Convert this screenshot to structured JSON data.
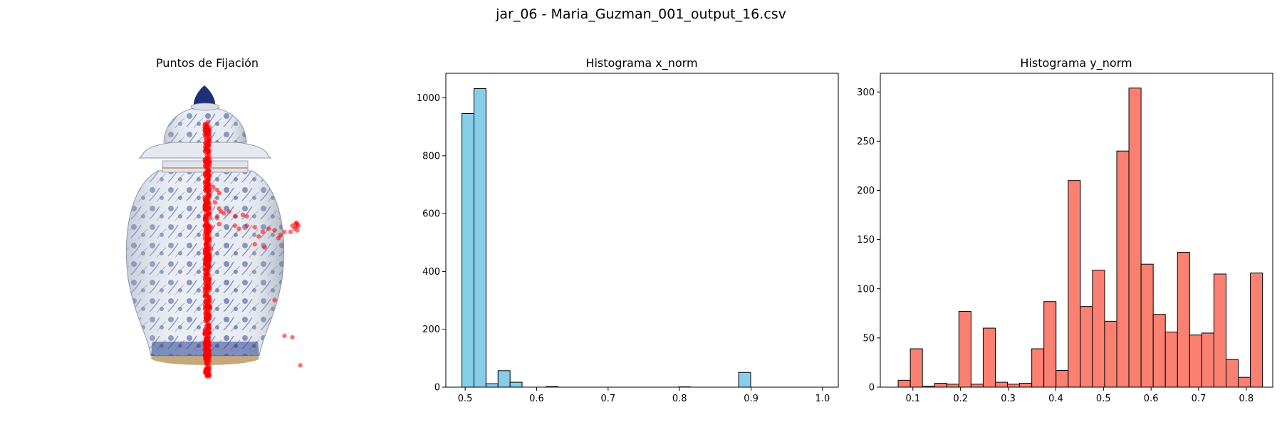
{
  "figure": {
    "suptitle": "jar_06 - Maria_Guzman_001_output_16.csv"
  },
  "chart_data": [
    {
      "type": "scatter",
      "title": "Puntos de Fijación",
      "background_image": "blue-white-porcelain-ginger-jar",
      "axes_visible": false,
      "point_color": "#ff0000",
      "point_alpha": 0.55,
      "xlim": [
        0,
        1
      ],
      "ylim": [
        0,
        1
      ],
      "trail": {
        "x_center": 0.5,
        "x_jitter": 0.013,
        "y_range": [
          0.04,
          0.86
        ],
        "count": 520
      },
      "points": [
        [
          0.505,
          0.86
        ],
        [
          0.51,
          0.8
        ],
        [
          0.495,
          0.74
        ],
        [
          0.505,
          0.7
        ],
        [
          0.51,
          0.64
        ],
        [
          0.5,
          0.6
        ],
        [
          0.515,
          0.55
        ],
        [
          0.52,
          0.52
        ],
        [
          0.51,
          0.48
        ],
        [
          0.52,
          0.45
        ],
        [
          0.5,
          0.42
        ],
        [
          0.505,
          0.38
        ],
        [
          0.51,
          0.34
        ],
        [
          0.5,
          0.3
        ],
        [
          0.515,
          0.26
        ],
        [
          0.5,
          0.22
        ],
        [
          0.51,
          0.18
        ],
        [
          0.505,
          0.14
        ],
        [
          0.51,
          0.1
        ],
        [
          0.505,
          0.06
        ],
        [
          0.51,
          0.04
        ],
        [
          0.53,
          0.65
        ],
        [
          0.55,
          0.64
        ],
        [
          0.56,
          0.63
        ],
        [
          0.54,
          0.6
        ],
        [
          0.56,
          0.58
        ],
        [
          0.57,
          0.57
        ],
        [
          0.55,
          0.55
        ],
        [
          0.56,
          0.53
        ],
        [
          0.585,
          0.565
        ],
        [
          0.61,
          0.57
        ],
        [
          0.64,
          0.555
        ],
        [
          0.68,
          0.56
        ],
        [
          0.7,
          0.555
        ],
        [
          0.64,
          0.525
        ],
        [
          0.7,
          0.525
        ],
        [
          0.66,
          0.515
        ],
        [
          0.74,
          0.52
        ],
        [
          0.78,
          0.505
        ],
        [
          0.81,
          0.515
        ],
        [
          0.76,
          0.49
        ],
        [
          0.84,
          0.51
        ],
        [
          0.87,
          0.495
        ],
        [
          0.89,
          0.505
        ],
        [
          0.92,
          0.505
        ],
        [
          0.86,
          0.485
        ],
        [
          0.74,
          0.465
        ],
        [
          0.79,
          0.455
        ],
        [
          0.93,
          0.525
        ],
        [
          0.945,
          0.53
        ],
        [
          0.955,
          0.53
        ],
        [
          0.95,
          0.52
        ],
        [
          0.96,
          0.525
        ],
        [
          0.94,
          0.515
        ],
        [
          0.955,
          0.51
        ],
        [
          0.95,
          0.535
        ],
        [
          0.84,
          0.285
        ],
        [
          0.89,
          0.17
        ],
        [
          0.93,
          0.165
        ],
        [
          0.97,
          0.075
        ]
      ]
    },
    {
      "type": "bar",
      "title": "Histograma x_norm",
      "xlabel": "",
      "ylabel": "",
      "color": "#87ceeb",
      "edgecolor": "#000000",
      "xlim": [
        0.473,
        1.022
      ],
      "ylim": [
        0,
        1085
      ],
      "xticks": [
        "0.5",
        "0.6",
        "0.7",
        "0.8",
        "0.9",
        "1.0"
      ],
      "xtick_values": [
        0.5,
        0.6,
        0.7,
        0.8,
        0.9,
        1.0
      ],
      "yticks": [
        "0",
        "200",
        "400",
        "600",
        "800",
        "1000"
      ],
      "ytick_values": [
        0,
        200,
        400,
        600,
        800,
        1000
      ],
      "bin_start": 0.4955,
      "bin_width": 0.01683,
      "values": [
        946,
        1032,
        12,
        57,
        17,
        0,
        0,
        2,
        0,
        0,
        0,
        0,
        0,
        0,
        0,
        0,
        0,
        0,
        1,
        0,
        0,
        0,
        0,
        51,
        0,
        0,
        0,
        0,
        0,
        0
      ]
    },
    {
      "type": "bar",
      "title": "Histograma y_norm",
      "xlabel": "",
      "ylabel": "",
      "color": "#fa8072",
      "edgecolor": "#000000",
      "xlim": [
        0.0315,
        0.8555
      ],
      "ylim": [
        0,
        319
      ],
      "xticks": [
        "0.1",
        "0.2",
        "0.3",
        "0.4",
        "0.5",
        "0.6",
        "0.7",
        "0.8"
      ],
      "xtick_values": [
        0.1,
        0.2,
        0.3,
        0.4,
        0.5,
        0.6,
        0.7,
        0.8
      ],
      "yticks": [
        "0",
        "50",
        "100",
        "150",
        "200",
        "250",
        "300"
      ],
      "ytick_values": [
        0,
        50,
        100,
        150,
        200,
        250,
        300
      ],
      "bin_start": 0.069,
      "bin_width": 0.0255,
      "values": [
        7,
        39,
        1,
        4,
        3,
        77,
        3,
        60,
        5,
        3,
        4,
        39,
        87,
        17,
        210,
        82,
        119,
        67,
        240,
        304,
        125,
        74,
        56,
        137,
        53,
        55,
        115,
        28,
        10,
        116
      ]
    }
  ]
}
